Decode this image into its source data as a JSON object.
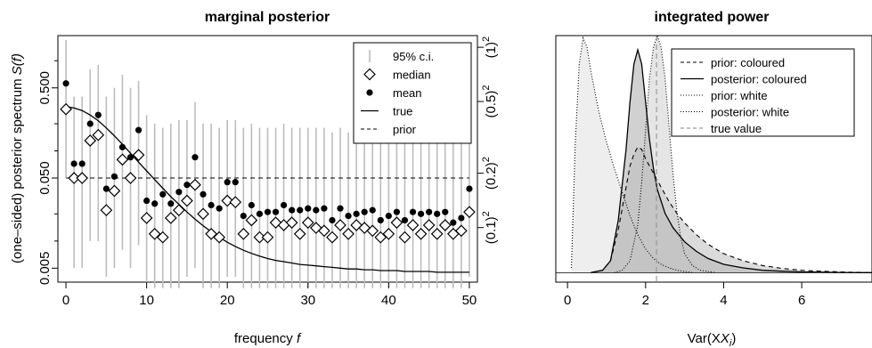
{
  "chart_data": [
    {
      "type": "scatter",
      "title": "marginal posterior",
      "xlabel": "frequency",
      "xlabel_var": "f",
      "ylabel": "(one–sided) posterior spectrum",
      "ylabel_var": "S(f)",
      "y_scale": "log",
      "xlim": [
        -1,
        51
      ],
      "ylim": [
        0.0035,
        1.9
      ],
      "x_ticks": [
        0,
        10,
        20,
        30,
        40,
        50
      ],
      "y_ticks": [
        {
          "value": 0.005,
          "label": "0.005"
        },
        {
          "value": 0.05,
          "label": "0.050"
        },
        {
          "value": 0.5,
          "label": "0.500"
        }
      ],
      "right_axis_ticks": [
        {
          "value": 0.0141,
          "base": "(0.1)",
          "exp": "2"
        },
        {
          "value": 0.0565,
          "base": "(0.2)",
          "exp": "2"
        },
        {
          "value": 0.353,
          "base": "(0.5)",
          "exp": "2"
        },
        {
          "value": 1.41,
          "base": "(1)",
          "exp": "2"
        }
      ],
      "legend": {
        "position": "top-right",
        "entries": [
          {
            "label": "95% c.i.",
            "symbol": "vbar"
          },
          {
            "label": "median",
            "symbol": "diamond"
          },
          {
            "label": "mean",
            "symbol": "dot"
          },
          {
            "label": "true",
            "symbol": "solid"
          },
          {
            "label": "prior",
            "symbol": "dashed"
          }
        ]
      },
      "x": [
        0,
        1,
        2,
        3,
        4,
        5,
        6,
        7,
        8,
        9,
        10,
        11,
        12,
        13,
        14,
        15,
        16,
        17,
        18,
        19,
        20,
        21,
        22,
        23,
        24,
        25,
        26,
        27,
        28,
        29,
        30,
        31,
        32,
        33,
        34,
        35,
        36,
        37,
        38,
        39,
        40,
        41,
        42,
        43,
        44,
        45,
        46,
        47,
        48,
        49,
        50
      ],
      "series": [
        {
          "name": "median",
          "values": [
            0.29,
            0.05,
            0.05,
            0.13,
            0.15,
            0.022,
            0.036,
            0.08,
            0.05,
            0.09,
            0.018,
            0.012,
            0.011,
            0.018,
            0.022,
            0.028,
            0.042,
            0.02,
            0.012,
            0.011,
            0.028,
            0.027,
            0.012,
            0.017,
            0.011,
            0.011,
            0.016,
            0.015,
            0.016,
            0.012,
            0.016,
            0.014,
            0.013,
            0.011,
            0.015,
            0.012,
            0.015,
            0.014,
            0.013,
            0.011,
            0.012,
            0.016,
            0.011,
            0.015,
            0.012,
            0.015,
            0.012,
            0.015,
            0.012,
            0.013,
            0.021
          ]
        },
        {
          "name": "mean",
          "values": [
            0.56,
            0.072,
            0.072,
            0.2,
            0.25,
            0.038,
            0.052,
            0.11,
            0.085,
            0.17,
            0.028,
            0.026,
            0.033,
            0.026,
            0.035,
            0.042,
            0.085,
            0.033,
            0.025,
            0.023,
            0.045,
            0.045,
            0.019,
            0.025,
            0.02,
            0.021,
            0.021,
            0.025,
            0.022,
            0.022,
            0.023,
            0.022,
            0.023,
            0.017,
            0.023,
            0.019,
            0.02,
            0.021,
            0.022,
            0.017,
            0.019,
            0.021,
            0.017,
            0.021,
            0.02,
            0.021,
            0.02,
            0.021,
            0.016,
            0.018,
            0.038
          ]
        },
        {
          "name": "95% c.i. lower",
          "values": [
            0.05,
            0.005,
            0.005,
            0.01,
            0.01,
            0.004,
            0.005,
            0.008,
            0.005,
            0.009,
            0.0035,
            0.003,
            0.003,
            0.003,
            0.003,
            0.004,
            0.005,
            0.003,
            0.003,
            0.003,
            0.004,
            0.004,
            0.003,
            0.003,
            0.003,
            0.003,
            0.003,
            0.003,
            0.003,
            0.003,
            0.003,
            0.003,
            0.003,
            0.003,
            0.003,
            0.003,
            0.003,
            0.003,
            0.003,
            0.003,
            0.003,
            0.003,
            0.003,
            0.003,
            0.003,
            0.003,
            0.003,
            0.003,
            0.003,
            0.003,
            0.004
          ]
        },
        {
          "name": "95% c.i. upper",
          "values": [
            1.7,
            0.4,
            0.4,
            0.8,
            0.9,
            0.4,
            0.5,
            0.7,
            0.5,
            0.6,
            0.25,
            0.2,
            0.18,
            0.2,
            0.22,
            0.22,
            0.35,
            0.2,
            0.2,
            0.18,
            0.22,
            0.22,
            0.18,
            0.2,
            0.18,
            0.18,
            0.18,
            0.2,
            0.18,
            0.18,
            0.18,
            0.18,
            0.18,
            0.16,
            0.18,
            0.16,
            0.18,
            0.18,
            0.18,
            0.16,
            0.16,
            0.18,
            0.16,
            0.18,
            0.16,
            0.18,
            0.16,
            0.18,
            0.16,
            0.16,
            0.2
          ]
        },
        {
          "name": "true",
          "values": [
            0.31,
            0.3,
            0.28,
            0.25,
            0.216,
            0.18,
            0.147,
            0.118,
            0.094,
            0.075,
            0.06,
            0.048,
            0.0385,
            0.031,
            0.0255,
            0.021,
            0.0175,
            0.0148,
            0.0127,
            0.011,
            0.0097,
            0.0087,
            0.0079,
            0.0073,
            0.0068,
            0.0064,
            0.0061,
            0.0059,
            0.0057,
            0.0055,
            0.0054,
            0.0053,
            0.0052,
            0.0051,
            0.005,
            0.0049,
            0.0049,
            0.0048,
            0.0048,
            0.0047,
            0.0047,
            0.0047,
            0.0046,
            0.0046,
            0.0046,
            0.0046,
            0.0045,
            0.0045,
            0.0045,
            0.0045,
            0.0045
          ]
        },
        {
          "name": "prior",
          "values": [
            0.05,
            0.05,
            0.05,
            0.05,
            0.05,
            0.05,
            0.05,
            0.05,
            0.05,
            0.05,
            0.05,
            0.05,
            0.05,
            0.05,
            0.05,
            0.05,
            0.05,
            0.05,
            0.05,
            0.05,
            0.05,
            0.05,
            0.05,
            0.05,
            0.05,
            0.05,
            0.05,
            0.05,
            0.05,
            0.05,
            0.05,
            0.05,
            0.05,
            0.05,
            0.05,
            0.05,
            0.05,
            0.05,
            0.05,
            0.05,
            0.05,
            0.05,
            0.05,
            0.05,
            0.05,
            0.05,
            0.05,
            0.05,
            0.05,
            0.05,
            0.05
          ]
        }
      ]
    },
    {
      "type": "area",
      "title": "integrated power",
      "xlabel": "Var(X",
      "xlabel_sub": "i",
      "xlabel_tail": ")",
      "xlim": [
        -0.3,
        7.8
      ],
      "ylim": [
        -0.04,
        1.0
      ],
      "x_ticks": [
        0,
        2,
        4,
        6
      ],
      "grid": false,
      "true_value": 2.28,
      "legend": {
        "position": "top-right",
        "entries": [
          {
            "label": "prior: coloured",
            "style": "dashed"
          },
          {
            "label": "posterior: coloured",
            "style": "solid"
          },
          {
            "label": "prior: white",
            "style": "dotted"
          },
          {
            "label": "posterior: white",
            "style": "dotted"
          },
          {
            "label": "true value",
            "style": "dashed-grey"
          }
        ]
      },
      "series": [
        {
          "name": "prior: white",
          "x": [
            0.1,
            0.2,
            0.3,
            0.4,
            0.5,
            0.6,
            0.8,
            1.0,
            1.2,
            1.4,
            1.6,
            1.8,
            2.0,
            2.2,
            2.4,
            2.6,
            2.8,
            3.0,
            3.2
          ],
          "y": [
            0.02,
            0.55,
            0.88,
            0.99,
            0.95,
            0.85,
            0.68,
            0.55,
            0.44,
            0.34,
            0.24,
            0.16,
            0.1,
            0.06,
            0.035,
            0.02,
            0.01,
            0.005,
            0.0
          ]
        },
        {
          "name": "posterior: white",
          "x": [
            1.2,
            1.4,
            1.6,
            1.8,
            1.9,
            2.0,
            2.1,
            2.2,
            2.3,
            2.4,
            2.5,
            2.6,
            2.7,
            2.8,
            2.9,
            3.0,
            3.2,
            3.4,
            3.6,
            3.8
          ],
          "y": [
            0.0,
            0.01,
            0.05,
            0.2,
            0.38,
            0.6,
            0.82,
            0.95,
            1.0,
            0.95,
            0.82,
            0.62,
            0.42,
            0.26,
            0.15,
            0.08,
            0.03,
            0.01,
            0.005,
            0.0
          ]
        },
        {
          "name": "posterior: coloured",
          "x": [
            0.6,
            0.9,
            1.1,
            1.3,
            1.5,
            1.6,
            1.7,
            1.8,
            1.9,
            2.0,
            2.1,
            2.2,
            2.3,
            2.5,
            2.7,
            3.0,
            3.3,
            3.6,
            4.0,
            4.5,
            5.0,
            5.5,
            6.0,
            6.5,
            7.0,
            7.5,
            7.8
          ],
          "y": [
            0.0,
            0.01,
            0.05,
            0.22,
            0.52,
            0.72,
            0.88,
            0.94,
            0.88,
            0.72,
            0.56,
            0.44,
            0.35,
            0.25,
            0.19,
            0.13,
            0.09,
            0.06,
            0.035,
            0.02,
            0.01,
            0.006,
            0.003,
            0.002,
            0.001,
            0.0,
            0.0
          ]
        },
        {
          "name": "prior: coloured",
          "x": [
            0.6,
            0.9,
            1.1,
            1.3,
            1.5,
            1.6,
            1.7,
            1.8,
            1.9,
            2.0,
            2.2,
            2.4,
            2.6,
            2.8,
            3.0,
            3.3,
            3.6,
            4.0,
            4.5,
            5.0,
            5.5,
            6.0,
            6.5,
            7.0,
            7.5,
            7.8
          ],
          "y": [
            0.0,
            0.01,
            0.05,
            0.18,
            0.36,
            0.45,
            0.5,
            0.53,
            0.52,
            0.48,
            0.42,
            0.36,
            0.3,
            0.25,
            0.21,
            0.16,
            0.12,
            0.08,
            0.05,
            0.03,
            0.018,
            0.01,
            0.006,
            0.003,
            0.001,
            0.0
          ]
        }
      ]
    }
  ]
}
